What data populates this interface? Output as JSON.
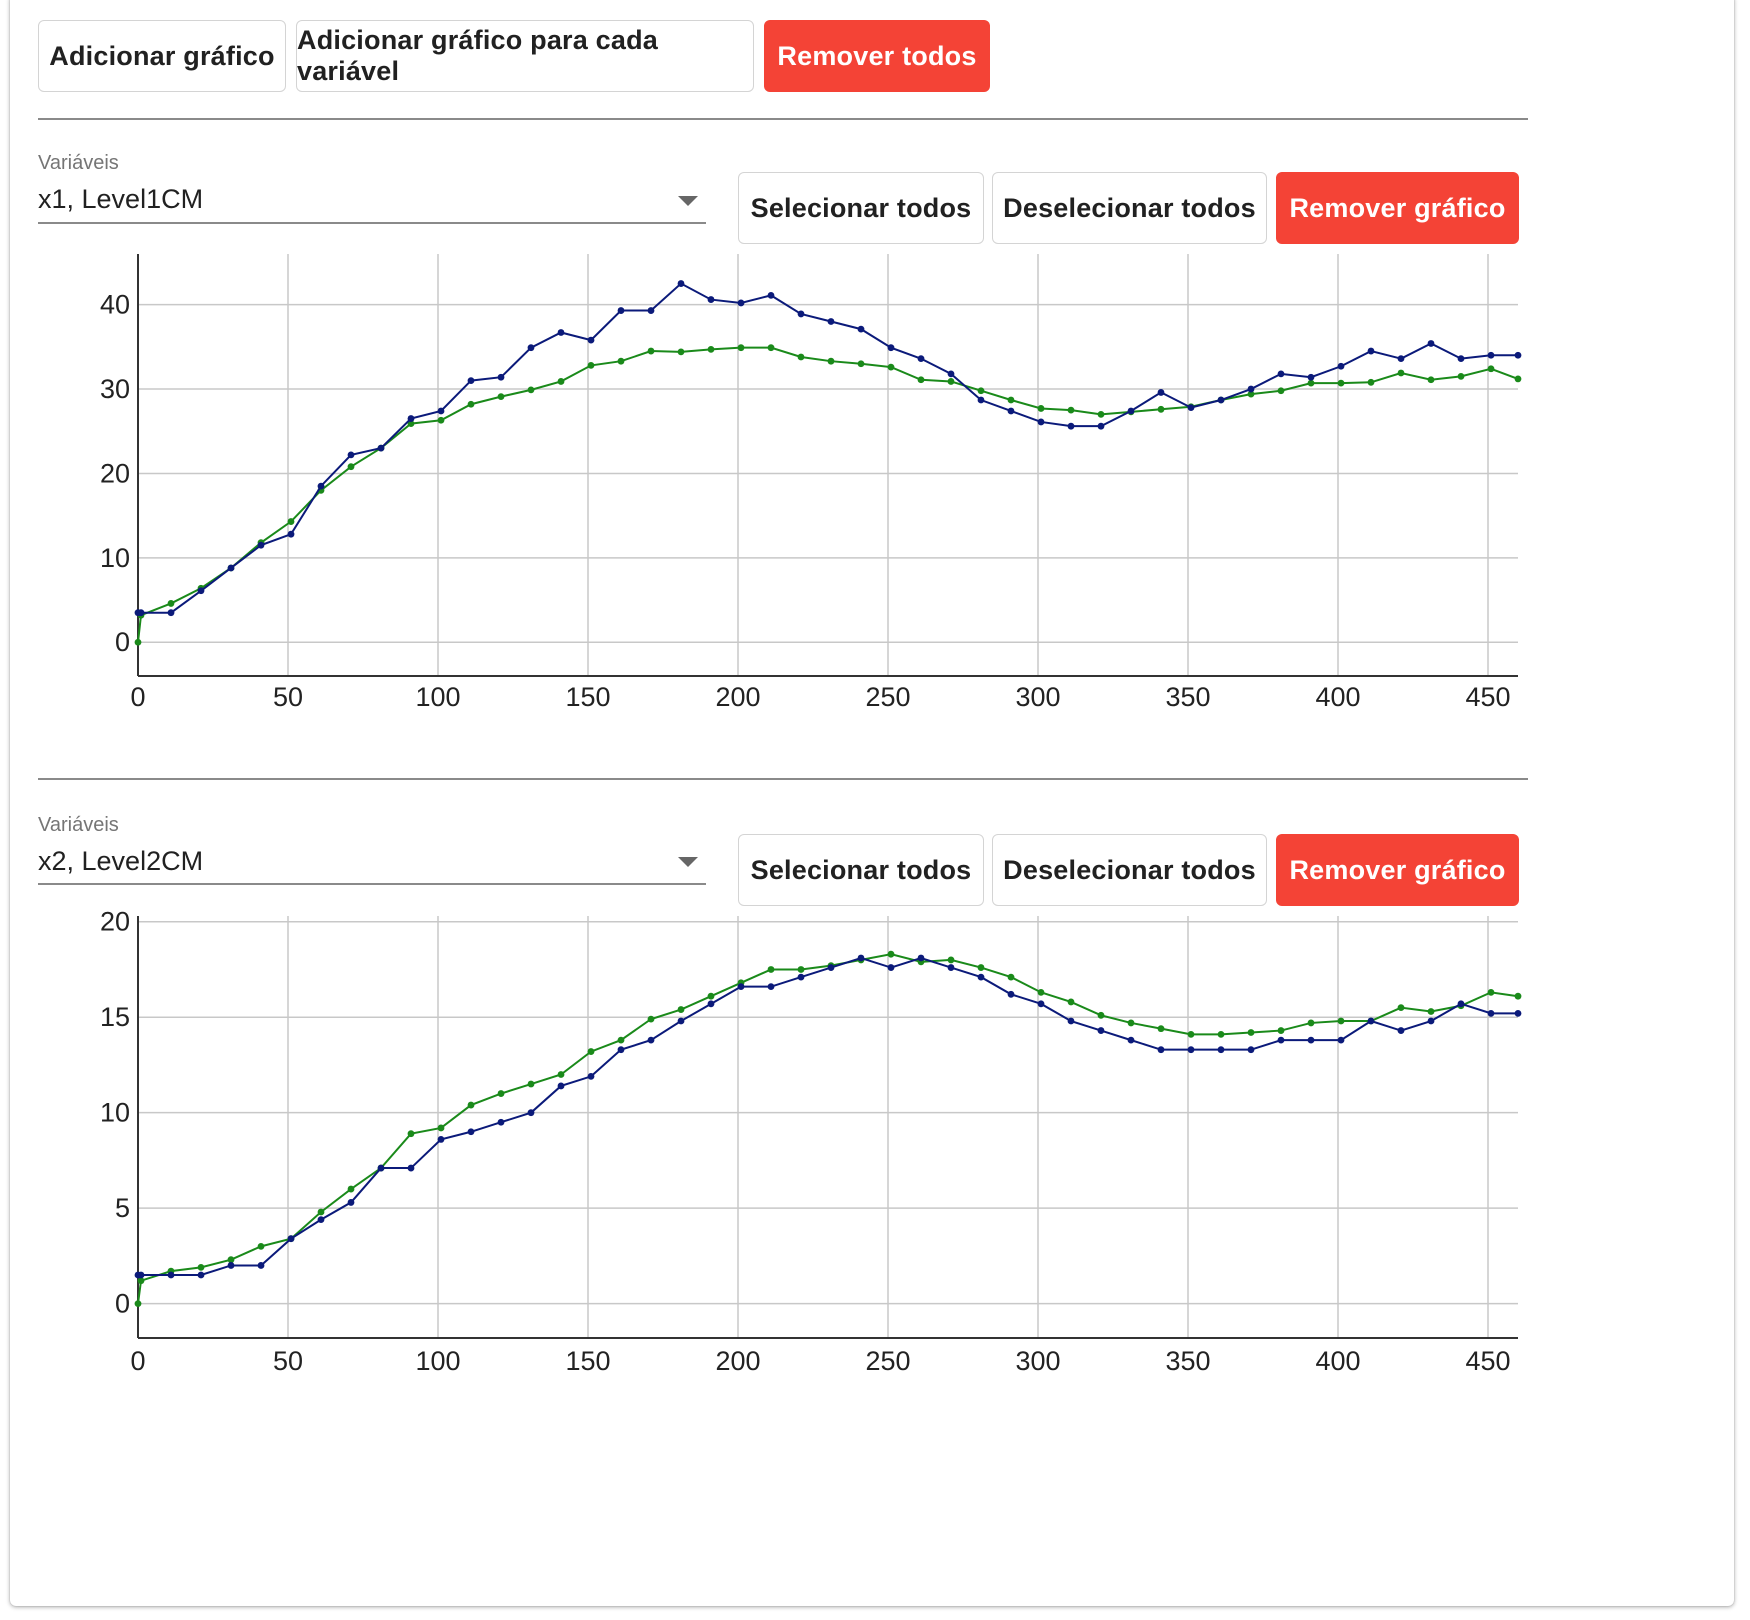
{
  "toolbar": {
    "add_chart": "Adicionar gráfico",
    "add_chart_each": "Adicionar gráfico para cada variável",
    "remove_all": "Remover todos"
  },
  "panels": [
    {
      "variables_label": "Variáveis",
      "selected": "x1, Level1CM",
      "select_all": "Selecionar todos",
      "deselect_all": "Deselecionar todos",
      "remove_chart": "Remover gráfico"
    },
    {
      "variables_label": "Variáveis",
      "selected": "x2, Level2CM",
      "select_all": "Selecionar todos",
      "deselect_all": "Deselecionar todos",
      "remove_chart": "Remover gráfico"
    }
  ],
  "colors": {
    "danger": "#f44336",
    "series_blue": "#0b1a7a",
    "series_green": "#1a8a1a",
    "grid": "#c8c8c8",
    "axis": "#333333"
  },
  "chart_data": [
    {
      "type": "line",
      "xlim": [
        0,
        460
      ],
      "ylim": [
        -4,
        46
      ],
      "xticks": [
        0,
        50,
        100,
        150,
        200,
        250,
        300,
        350,
        400,
        450
      ],
      "yticks": [
        0,
        10,
        20,
        30,
        40
      ],
      "grid": true,
      "x": [
        0,
        1,
        11,
        21,
        31,
        41,
        51,
        61,
        71,
        81,
        91,
        101,
        111,
        121,
        131,
        141,
        151,
        161,
        171,
        181,
        191,
        201,
        211,
        221,
        231,
        241,
        251,
        261,
        271,
        281,
        291,
        301,
        311,
        321,
        331,
        341,
        351,
        361,
        371,
        381,
        391,
        401,
        411,
        421,
        431,
        441,
        451,
        461
      ],
      "series": [
        {
          "color": "#0b1a7a",
          "values": [
            3.5,
            3.5,
            3.5,
            6.1,
            8.8,
            11.5,
            12.8,
            18.5,
            22.2,
            23.0,
            26.5,
            27.4,
            31.0,
            31.4,
            34.9,
            36.7,
            35.8,
            39.3,
            39.3,
            42.5,
            40.6,
            40.2,
            41.1,
            38.9,
            38.0,
            37.1,
            34.9,
            33.6,
            31.8,
            28.7,
            27.4,
            26.1,
            25.6,
            25.6,
            27.4,
            29.6,
            27.8,
            28.7,
            30.0,
            31.8,
            31.4,
            32.7,
            34.5,
            33.6,
            35.4,
            33.6,
            34.0,
            34.0
          ]
        },
        {
          "color": "#1a8a1a",
          "values": [
            0.0,
            3.2,
            4.6,
            6.4,
            8.8,
            11.8,
            14.3,
            18.0,
            20.8,
            23.0,
            25.9,
            26.3,
            28.2,
            29.1,
            29.9,
            30.9,
            32.8,
            33.3,
            34.5,
            34.4,
            34.7,
            34.9,
            34.9,
            33.8,
            33.3,
            33.0,
            32.6,
            31.1,
            30.9,
            29.8,
            28.7,
            27.7,
            27.5,
            27.0,
            27.3,
            27.6,
            27.9,
            28.7,
            29.4,
            29.8,
            30.7,
            30.7,
            30.8,
            31.9,
            31.1,
            31.5,
            32.4,
            31.2
          ]
        }
      ]
    },
    {
      "type": "line",
      "xlim": [
        0,
        460
      ],
      "ylim": [
        -1.8,
        20.3
      ],
      "xticks": [
        0,
        50,
        100,
        150,
        200,
        250,
        300,
        350,
        400,
        450
      ],
      "yticks": [
        0,
        5,
        10,
        15,
        20
      ],
      "grid": true,
      "x": [
        0,
        1,
        11,
        21,
        31,
        41,
        51,
        61,
        71,
        81,
        91,
        101,
        111,
        121,
        131,
        141,
        151,
        161,
        171,
        181,
        191,
        201,
        211,
        221,
        231,
        241,
        251,
        261,
        271,
        281,
        291,
        301,
        311,
        321,
        331,
        341,
        351,
        361,
        371,
        381,
        391,
        401,
        411,
        421,
        431,
        441,
        451,
        461
      ],
      "series": [
        {
          "color": "#0b1a7a",
          "values": [
            1.5,
            1.5,
            1.5,
            1.5,
            2.0,
            2.0,
            3.4,
            4.4,
            5.3,
            7.1,
            7.1,
            8.6,
            9.0,
            9.5,
            10.0,
            11.4,
            11.9,
            13.3,
            13.8,
            14.8,
            15.7,
            16.6,
            16.6,
            17.1,
            17.6,
            18.1,
            17.6,
            18.1,
            17.6,
            17.1,
            16.2,
            15.7,
            14.8,
            14.3,
            13.8,
            13.3,
            13.3,
            13.3,
            13.3,
            13.8,
            13.8,
            13.8,
            14.8,
            14.3,
            14.8,
            15.7,
            15.2,
            15.2
          ]
        },
        {
          "color": "#1a8a1a",
          "values": [
            0.0,
            1.2,
            1.7,
            1.9,
            2.3,
            3.0,
            3.4,
            4.8,
            6.0,
            7.1,
            8.9,
            9.2,
            10.4,
            11.0,
            11.5,
            12.0,
            13.2,
            13.8,
            14.9,
            15.4,
            16.1,
            16.8,
            17.5,
            17.5,
            17.7,
            18.0,
            18.3,
            17.9,
            18.0,
            17.6,
            17.1,
            16.3,
            15.8,
            15.1,
            14.7,
            14.4,
            14.1,
            14.1,
            14.2,
            14.3,
            14.7,
            14.8,
            14.8,
            15.5,
            15.3,
            15.6,
            16.3,
            16.1
          ]
        }
      ]
    }
  ]
}
